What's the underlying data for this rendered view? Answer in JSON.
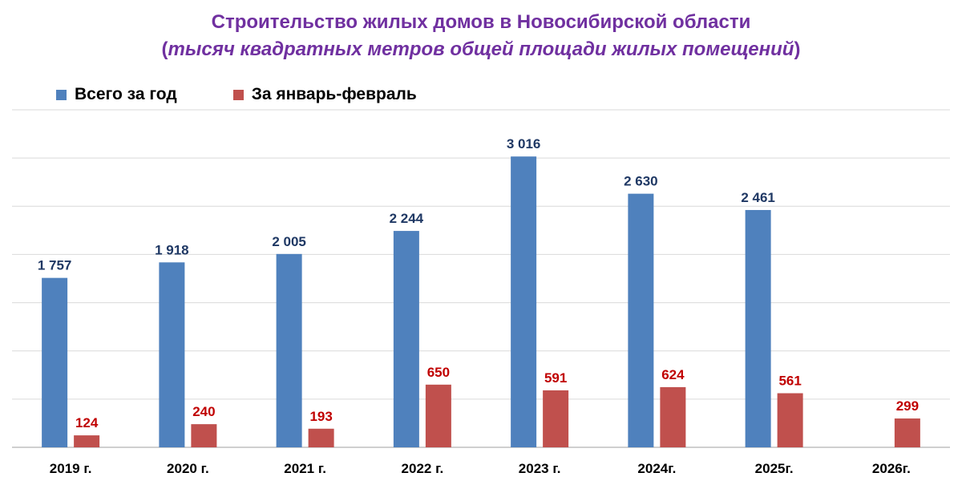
{
  "colors": {
    "total": "#4F81BD",
    "janfeb": "#C0504D",
    "label_total": "#1F3864",
    "label_janfeb": "#C00000",
    "title": "#7030A0",
    "grid": "#D9D9D9"
  },
  "chart_data": {
    "type": "bar",
    "title": "Строительство жилых домов в Новосибирской области",
    "subtitle_open": "(",
    "subtitle": "тысяч квадратных метров общей площади жилых помещений",
    "subtitle_close": ")",
    "categories": [
      "2019 г.",
      "2020 г.",
      "2021 г.",
      "2022 г.",
      "2023 г.",
      "2024г.",
      "2025г.",
      "2026г."
    ],
    "series": [
      {
        "name": "Всего за год",
        "values": [
          1757,
          1918,
          2005,
          2244,
          3016,
          2630,
          2461,
          null
        ],
        "labels": [
          "1 757",
          "1 918",
          "2 005",
          "2 244",
          "3 016",
          "2 630",
          "2 461",
          ""
        ]
      },
      {
        "name": "За январь-февраль",
        "values": [
          124,
          240,
          193,
          650,
          591,
          624,
          561,
          299
        ],
        "labels": [
          "124",
          "240",
          "193",
          "650",
          "591",
          "624",
          "561",
          "299"
        ]
      }
    ],
    "ylim": [
      0,
      3500
    ],
    "grid": true,
    "legend_position": "top-left"
  }
}
